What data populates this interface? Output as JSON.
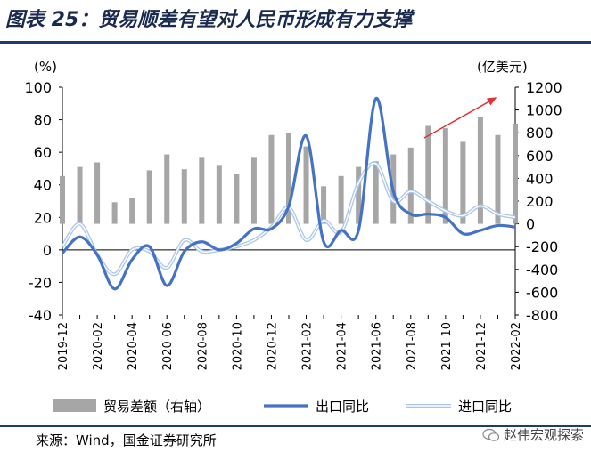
{
  "header": {
    "title": "图表 25：贸易顺差有望对人民币形成有力支撑"
  },
  "footer": {
    "source": "来源：Wind，国金证券研究所",
    "watermark": "赵伟宏观探索"
  },
  "chart_data": {
    "type": "bar-line-combo",
    "title": "图表 25：贸易顺差有望对人民币形成有力支撑",
    "left_axis": {
      "label": "(%)",
      "min": -40,
      "max": 100,
      "ticks": [
        "100",
        "80",
        "60",
        "40",
        "20",
        "0",
        "-20",
        "-40"
      ]
    },
    "right_axis": {
      "label": "(亿美元)",
      "min": -800,
      "max": 1200,
      "ticks": [
        "1200",
        "1000",
        "800",
        "600",
        "400",
        "200",
        "0",
        "-200",
        "-400",
        "-600",
        "-800"
      ]
    },
    "x_ticks": [
      "2019-12",
      "2020-02",
      "2020-04",
      "2020-06",
      "2020-08",
      "2020-10",
      "2020-12",
      "2021-02",
      "2021-04",
      "2021-06",
      "2021-08",
      "2021-10",
      "2021-12",
      "2022-02"
    ],
    "months": [
      "2019-12",
      "2020-01",
      "2020-02",
      "2020-03",
      "2020-04",
      "2020-05",
      "2020-06",
      "2020-07",
      "2020-08",
      "2020-09",
      "2020-10",
      "2020-11",
      "2020-12",
      "2021-01",
      "2021-02",
      "2021-03",
      "2021-04",
      "2021-05",
      "2021-06",
      "2021-07",
      "2021-08",
      "2021-09",
      "2021-10",
      "2021-11",
      "2021-12",
      "2022-01",
      "2022-02"
    ],
    "series": [
      {
        "name": "贸易差额（右轴）",
        "type": "bar",
        "axis": "right",
        "color": "#a6a6a6",
        "values": [
          420,
          500,
          540,
          190,
          230,
          470,
          610,
          480,
          580,
          510,
          440,
          580,
          780,
          800,
          680,
          330,
          420,
          500,
          550,
          610,
          670,
          860,
          840,
          720,
          940,
          780,
          880
        ]
      },
      {
        "name": "出口同比",
        "type": "line",
        "axis": "left",
        "color": "#4472c4",
        "values": [
          -2,
          8,
          -3,
          -24,
          -6,
          2,
          -22,
          -1,
          5,
          0,
          4,
          13,
          13,
          27,
          70,
          5,
          12,
          12,
          93,
          36,
          22,
          22,
          20,
          10,
          12,
          15,
          14
        ]
      },
      {
        "name": "进口同比",
        "type": "line",
        "axis": "left",
        "color": "#a9c6ea",
        "values": [
          2,
          16,
          -3,
          -15,
          0,
          -1,
          -11,
          6,
          -1,
          0,
          2,
          6,
          14,
          26,
          6,
          18,
          11,
          41,
          53,
          30,
          36,
          30,
          24,
          21,
          27,
          22,
          20
        ]
      }
    ],
    "legend": [
      "贸易差额（右轴）",
      "出口同比",
      "进口同比"
    ],
    "annotation": "upward red arrow over recent bars"
  }
}
